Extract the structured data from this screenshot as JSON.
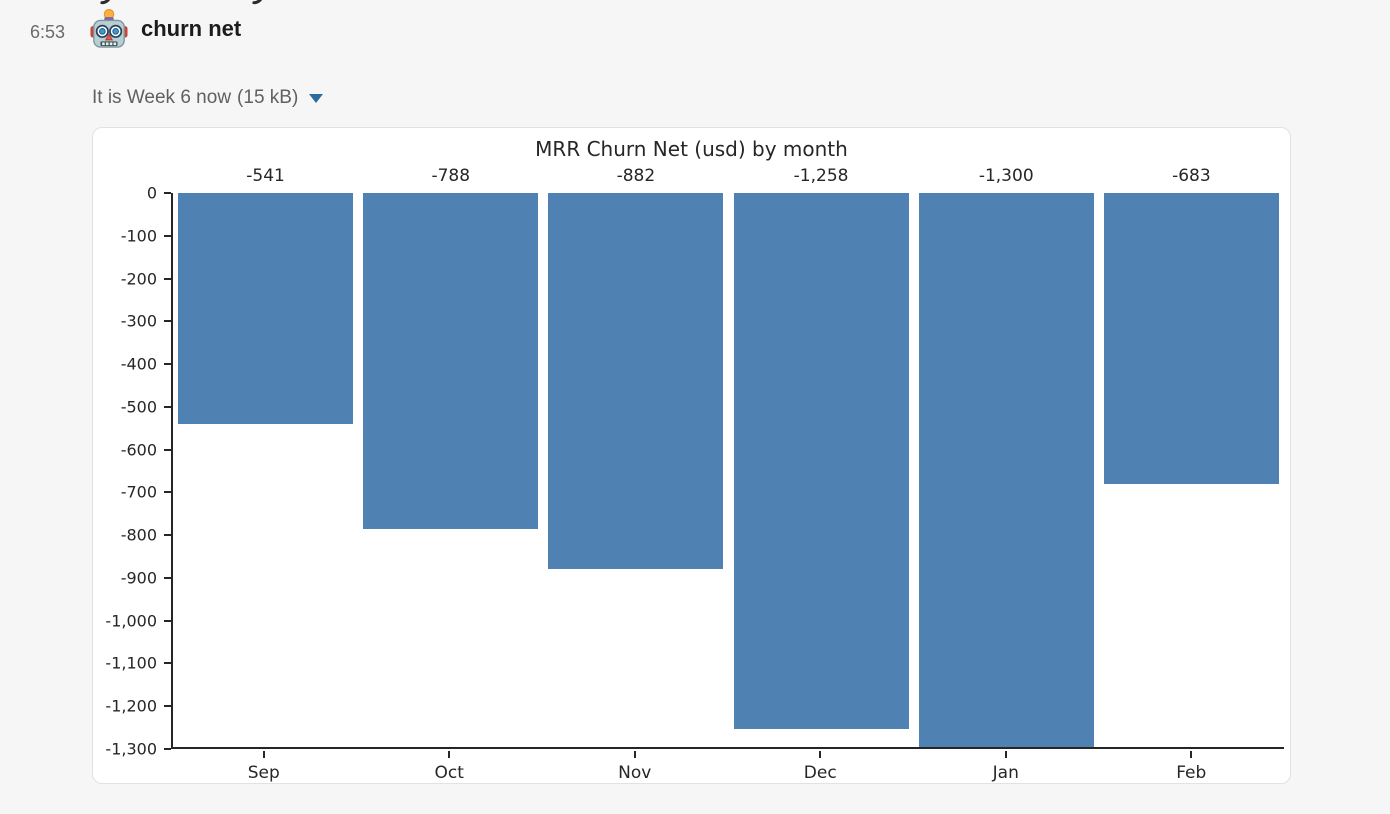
{
  "page": {
    "background_color": "#f6f6f6"
  },
  "message": {
    "timestamp": "6:53",
    "sender_name": "churn net",
    "bot_icon": "robot-emoji-icon"
  },
  "attachment": {
    "file_name": "It is Week 6 now",
    "file_size": "(15 kB)",
    "collapse_icon": "caret-down-icon",
    "caret_color": "#2e6b9d"
  },
  "chart_data": {
    "type": "bar",
    "title": "MRR Churn Net (usd) by month",
    "categories": [
      "Sep",
      "Oct",
      "Nov",
      "Dec",
      "Jan",
      "Feb"
    ],
    "values": [
      -541,
      -788,
      -882,
      -1258,
      -1300,
      -683
    ],
    "value_labels": [
      "-541",
      "-788",
      "-882",
      "-1,258",
      "-1,300",
      "-683"
    ],
    "xlabel": "",
    "ylabel": "",
    "ylim": [
      -1300,
      0
    ],
    "ytick_values": [
      0,
      -100,
      -200,
      -300,
      -400,
      -500,
      -600,
      -700,
      -800,
      -900,
      -1000,
      -1100,
      -1200,
      -1300
    ],
    "ytick_labels": [
      "0",
      "-100",
      "-200",
      "-300",
      "-400",
      "-500",
      "-600",
      "-700",
      "-800",
      "-900",
      "-1,000",
      "-1,100",
      "-1,200",
      "-1,300"
    ],
    "bar_color": "#4f81b2",
    "axis_color": "#262626",
    "text_color": "#262626",
    "grid": false,
    "legend": null
  }
}
